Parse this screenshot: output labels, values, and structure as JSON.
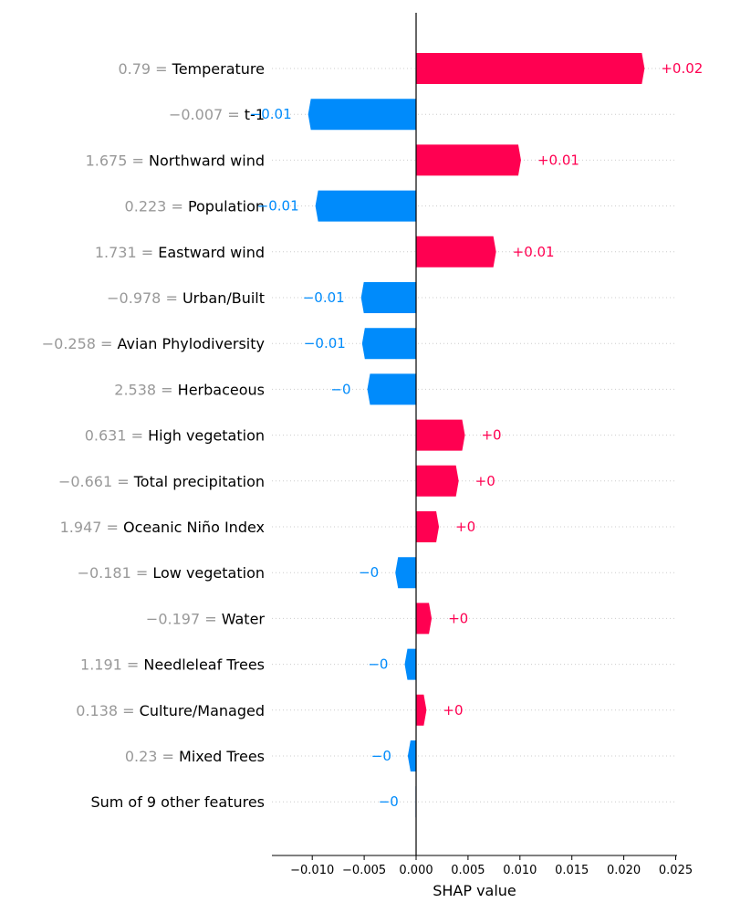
{
  "chart_data": {
    "type": "bar",
    "orientation": "horizontal",
    "title": "",
    "xlabel": "SHAP value",
    "ylabel": "",
    "xlim": [
      -0.0138,
      0.0255
    ],
    "xticks": [
      -0.01,
      -0.005,
      0.0,
      0.005,
      0.01,
      0.015,
      0.02,
      0.025
    ],
    "xtick_labels": [
      "−0.010",
      "−0.005",
      "0.000",
      "0.005",
      "0.010",
      "0.015",
      "0.020",
      "0.025"
    ],
    "grid": "dotted horizontal row lines",
    "colors": {
      "positive": "#ff0051",
      "negative": "#008bfb",
      "other": "#c9def7"
    },
    "rows": [
      {
        "value_text": "0.79",
        "feature": "Temperature",
        "shap": 0.022,
        "label": "+0.02"
      },
      {
        "value_text": "−0.007",
        "feature": "t-1",
        "shap": -0.0104,
        "label": "−0.01"
      },
      {
        "value_text": "1.675",
        "feature": "Northward wind",
        "shap": 0.0101,
        "label": "+0.01"
      },
      {
        "value_text": "0.223",
        "feature": "Population",
        "shap": -0.0097,
        "label": "−0.01"
      },
      {
        "value_text": "1.731",
        "feature": "Eastward wind",
        "shap": 0.0077,
        "label": "+0.01"
      },
      {
        "value_text": "−0.978",
        "feature": "Urban/Built",
        "shap": -0.0053,
        "label": "−0.01"
      },
      {
        "value_text": "−0.258",
        "feature": "Avian Phylodiversity",
        "shap": -0.0052,
        "label": "−0.01"
      },
      {
        "value_text": "2.538",
        "feature": "Herbaceous",
        "shap": -0.0047,
        "label": "−0"
      },
      {
        "value_text": "0.631",
        "feature": "High vegetation",
        "shap": 0.0047,
        "label": "+0"
      },
      {
        "value_text": "−0.661",
        "feature": "Total precipitation",
        "shap": 0.0041,
        "label": "+0"
      },
      {
        "value_text": "1.947",
        "feature": "Oceanic Niño Index",
        "shap": 0.0022,
        "label": "+0"
      },
      {
        "value_text": "−0.181",
        "feature": "Low vegetation",
        "shap": -0.002,
        "label": "−0"
      },
      {
        "value_text": "−0.197",
        "feature": "Water",
        "shap": 0.0015,
        "label": "+0"
      },
      {
        "value_text": "1.191",
        "feature": "Needleleaf Trees",
        "shap": -0.0011,
        "label": "−0"
      },
      {
        "value_text": "0.138",
        "feature": "Culture/Managed",
        "shap": 0.001,
        "label": "+0"
      },
      {
        "value_text": "0.23",
        "feature": "Mixed Trees",
        "shap": -0.0008,
        "label": "−0"
      },
      {
        "value_text": "",
        "feature": "Sum of 9 other features",
        "shap": -0.0001,
        "label": "−0"
      }
    ]
  }
}
